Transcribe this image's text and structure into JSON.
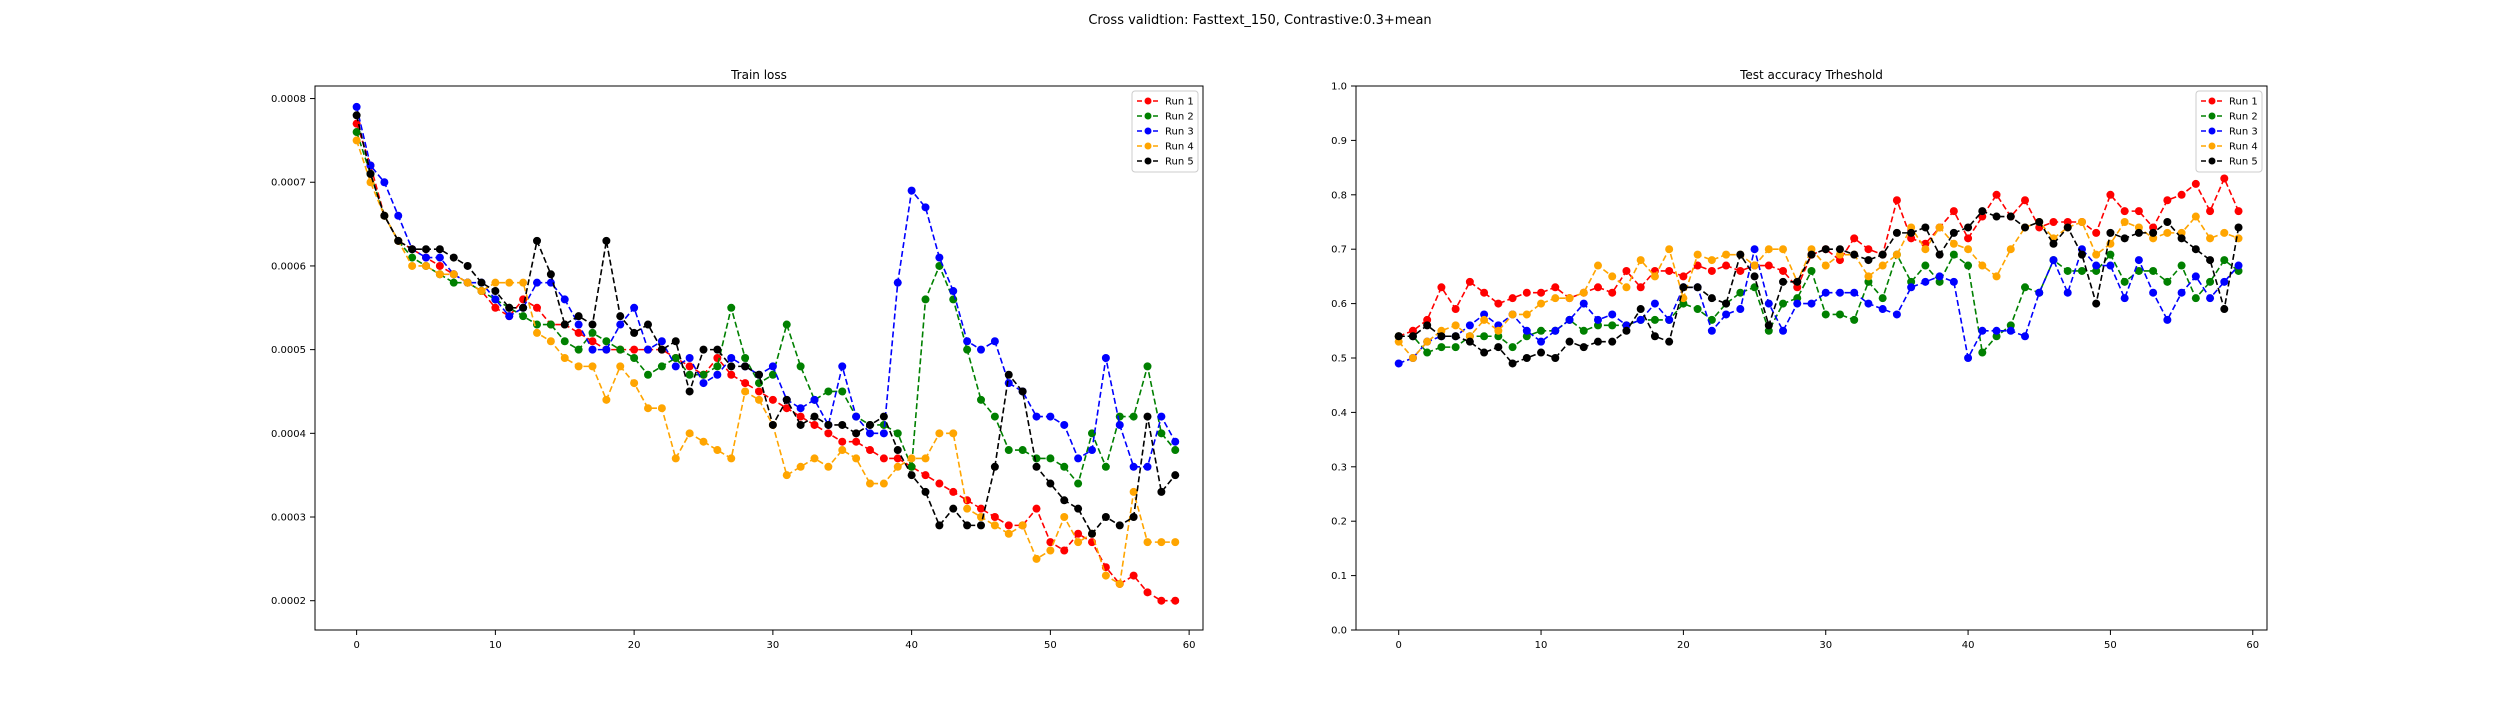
{
  "figure": {
    "suptitle": "Cross validtion: Fasttext_150, Contrastive:0.3+mean"
  },
  "chart_data": [
    {
      "type": "line",
      "title": "Train loss",
      "xlabel": "",
      "ylabel": "",
      "xlim": [
        -3,
        61
      ],
      "ylim": [
        0.000165,
        0.000815
      ],
      "xticks": [
        0,
        10,
        20,
        30,
        40,
        50,
        60
      ],
      "yticks": [
        0.0002,
        0.0003,
        0.0004,
        0.0005,
        0.0006,
        0.0007,
        0.0008
      ],
      "yticklabels": [
        "0.0002",
        "0.0003",
        "0.0004",
        "0.0005",
        "0.0006",
        "0.0007",
        "0.0008"
      ],
      "grid": false,
      "legend": "top-right",
      "series": [
        {
          "name": "Run 1",
          "color": "#ff0000",
          "values": [
            0.00077,
            0.00072,
            0.00066,
            0.00063,
            0.00062,
            0.00061,
            0.0006,
            0.00059,
            0.00058,
            0.00057,
            0.00055,
            0.00054,
            0.00056,
            0.00055,
            0.00053,
            0.00053,
            0.00052,
            0.00051,
            0.0005,
            0.0005,
            0.0005,
            0.0005,
            0.0005,
            0.00049,
            0.00048,
            0.00047,
            0.00049,
            0.00047,
            0.00046,
            0.00045,
            0.00044,
            0.00043,
            0.00042,
            0.00041,
            0.0004,
            0.00039,
            0.00039,
            0.00038,
            0.00037,
            0.00037,
            0.00036,
            0.00035,
            0.00034,
            0.00033,
            0.00032,
            0.00031,
            0.0003,
            0.00029,
            0.00029,
            0.00031,
            0.00027,
            0.00026,
            0.00028,
            0.00027,
            0.00024,
            0.00022,
            0.00023,
            0.00021,
            0.0002,
            0.0002
          ]
        },
        {
          "name": "Run 2",
          "color": "#008000",
          "values": [
            0.00076,
            0.00071,
            0.00066,
            0.00063,
            0.00061,
            0.0006,
            0.00059,
            0.00058,
            0.00058,
            0.00057,
            0.00056,
            0.00055,
            0.00054,
            0.00053,
            0.00053,
            0.00051,
            0.0005,
            0.00052,
            0.00051,
            0.0005,
            0.00049,
            0.00047,
            0.00048,
            0.00049,
            0.00047,
            0.00047,
            0.00048,
            0.00055,
            0.00049,
            0.00046,
            0.00047,
            0.00053,
            0.00048,
            0.00044,
            0.00045,
            0.00045,
            0.00042,
            0.00041,
            0.00041,
            0.0004,
            0.00036,
            0.00056,
            0.0006,
            0.00056,
            0.0005,
            0.00044,
            0.00042,
            0.00038,
            0.00038,
            0.00037,
            0.00037,
            0.00036,
            0.00034,
            0.0004,
            0.00036,
            0.00042,
            0.00042,
            0.00048,
            0.0004,
            0.00038
          ]
        },
        {
          "name": "Run 3",
          "color": "#0000ff",
          "values": [
            0.00079,
            0.00072,
            0.0007,
            0.00066,
            0.00062,
            0.00061,
            0.00061,
            0.00059,
            0.00058,
            0.00058,
            0.00056,
            0.00054,
            0.00055,
            0.00058,
            0.00058,
            0.00056,
            0.00053,
            0.0005,
            0.0005,
            0.00053,
            0.00055,
            0.0005,
            0.00051,
            0.00048,
            0.00049,
            0.00046,
            0.00047,
            0.00049,
            0.00048,
            0.00047,
            0.00048,
            0.00044,
            0.00043,
            0.00044,
            0.00041,
            0.00048,
            0.00042,
            0.0004,
            0.0004,
            0.00058,
            0.00069,
            0.00067,
            0.00061,
            0.00057,
            0.00051,
            0.0005,
            0.00051,
            0.00046,
            0.00045,
            0.00042,
            0.00042,
            0.00041,
            0.00037,
            0.00038,
            0.00049,
            0.00041,
            0.00036,
            0.00036,
            0.00042,
            0.00039
          ]
        },
        {
          "name": "Run 4",
          "color": "#ffa500",
          "values": [
            0.00075,
            0.0007,
            0.00066,
            0.00063,
            0.0006,
            0.0006,
            0.00059,
            0.00059,
            0.00058,
            0.00057,
            0.00058,
            0.00058,
            0.00058,
            0.00052,
            0.00051,
            0.00049,
            0.00048,
            0.00048,
            0.00044,
            0.00048,
            0.00046,
            0.00043,
            0.00043,
            0.00037,
            0.0004,
            0.00039,
            0.00038,
            0.00037,
            0.00045,
            0.00044,
            0.00041,
            0.00035,
            0.00036,
            0.00037,
            0.00036,
            0.00038,
            0.00037,
            0.00034,
            0.00034,
            0.00036,
            0.00037,
            0.00037,
            0.0004,
            0.0004,
            0.00031,
            0.0003,
            0.00029,
            0.00028,
            0.00029,
            0.00025,
            0.00026,
            0.0003,
            0.00027,
            0.00028,
            0.00023,
            0.00022,
            0.00033,
            0.00027,
            0.00027,
            0.00027
          ]
        },
        {
          "name": "Run 5",
          "color": "#000000",
          "values": [
            0.00078,
            0.00071,
            0.00066,
            0.00063,
            0.00062,
            0.00062,
            0.00062,
            0.00061,
            0.0006,
            0.00058,
            0.00057,
            0.00055,
            0.00055,
            0.00063,
            0.00059,
            0.00053,
            0.00054,
            0.00053,
            0.00063,
            0.00054,
            0.00052,
            0.00053,
            0.0005,
            0.00051,
            0.00045,
            0.0005,
            0.0005,
            0.00048,
            0.00048,
            0.00047,
            0.00041,
            0.00044,
            0.00041,
            0.00042,
            0.00041,
            0.00041,
            0.0004,
            0.00041,
            0.00042,
            0.00038,
            0.00035,
            0.00033,
            0.00029,
            0.00031,
            0.00029,
            0.00029,
            0.00036,
            0.00047,
            0.00045,
            0.00036,
            0.00034,
            0.00032,
            0.00031,
            0.00028,
            0.0003,
            0.00029,
            0.0003,
            0.00042,
            0.00033,
            0.00035
          ]
        }
      ]
    },
    {
      "type": "line",
      "title": "Test accuracy Trheshold",
      "xlabel": "",
      "ylabel": "",
      "xlim": [
        -3,
        61
      ],
      "ylim": [
        0.0,
        1.0
      ],
      "xticks": [
        0,
        10,
        20,
        30,
        40,
        50,
        60
      ],
      "yticks": [
        0.0,
        0.1,
        0.2,
        0.3,
        0.4,
        0.5,
        0.6,
        0.7,
        0.8,
        0.9,
        1.0
      ],
      "yticklabels": [
        "0.0",
        "0.1",
        "0.2",
        "0.3",
        "0.4",
        "0.5",
        "0.6",
        "0.7",
        "0.8",
        "0.9",
        "1.0"
      ],
      "grid": false,
      "legend": "top-right",
      "series": [
        {
          "name": "Run 1",
          "color": "#ff0000",
          "values": [
            0.54,
            0.55,
            0.57,
            0.63,
            0.59,
            0.64,
            0.62,
            0.6,
            0.61,
            0.62,
            0.62,
            0.63,
            0.61,
            0.62,
            0.63,
            0.62,
            0.66,
            0.63,
            0.66,
            0.66,
            0.65,
            0.67,
            0.66,
            0.67,
            0.66,
            0.67,
            0.67,
            0.66,
            0.63,
            0.69,
            0.7,
            0.68,
            0.72,
            0.7,
            0.69,
            0.79,
            0.72,
            0.71,
            0.74,
            0.77,
            0.72,
            0.76,
            0.8,
            0.76,
            0.79,
            0.74,
            0.75,
            0.75,
            0.75,
            0.73,
            0.8,
            0.77,
            0.77,
            0.74,
            0.79,
            0.8,
            0.82,
            0.77,
            0.83,
            0.77
          ]
        },
        {
          "name": "Run 2",
          "color": "#008000",
          "values": [
            0.54,
            0.54,
            0.51,
            0.52,
            0.52,
            0.54,
            0.54,
            0.54,
            0.52,
            0.54,
            0.55,
            0.55,
            0.57,
            0.55,
            0.56,
            0.56,
            0.56,
            0.57,
            0.57,
            0.57,
            0.6,
            0.59,
            0.57,
            0.6,
            0.62,
            0.63,
            0.55,
            0.6,
            0.61,
            0.66,
            0.58,
            0.58,
            0.57,
            0.64,
            0.61,
            0.69,
            0.64,
            0.67,
            0.64,
            0.69,
            0.67,
            0.51,
            0.54,
            0.56,
            0.63,
            0.62,
            0.68,
            0.66,
            0.66,
            0.66,
            0.69,
            0.64,
            0.66,
            0.66,
            0.64,
            0.67,
            0.61,
            0.64,
            0.68,
            0.66
          ]
        },
        {
          "name": "Run 3",
          "color": "#0000ff",
          "values": [
            0.49,
            0.5,
            0.53,
            0.54,
            0.54,
            0.56,
            0.58,
            0.56,
            0.58,
            0.55,
            0.53,
            0.55,
            0.57,
            0.6,
            0.57,
            0.58,
            0.56,
            0.57,
            0.6,
            0.57,
            0.63,
            0.63,
            0.55,
            0.58,
            0.59,
            0.7,
            0.6,
            0.55,
            0.6,
            0.6,
            0.62,
            0.62,
            0.62,
            0.6,
            0.59,
            0.58,
            0.63,
            0.64,
            0.65,
            0.64,
            0.5,
            0.55,
            0.55,
            0.55,
            0.54,
            0.62,
            0.68,
            0.62,
            0.7,
            0.67,
            0.67,
            0.61,
            0.68,
            0.62,
            0.57,
            0.62,
            0.65,
            0.61,
            0.64,
            0.67
          ]
        },
        {
          "name": "Run 4",
          "color": "#ffa500",
          "values": [
            0.53,
            0.5,
            0.53,
            0.55,
            0.56,
            0.54,
            0.57,
            0.55,
            0.58,
            0.58,
            0.6,
            0.61,
            0.61,
            0.62,
            0.67,
            0.65,
            0.63,
            0.68,
            0.65,
            0.7,
            0.61,
            0.69,
            0.68,
            0.69,
            0.69,
            0.67,
            0.7,
            0.7,
            0.64,
            0.7,
            0.67,
            0.69,
            0.69,
            0.65,
            0.67,
            0.69,
            0.74,
            0.7,
            0.74,
            0.71,
            0.7,
            0.67,
            0.65,
            0.7,
            0.74,
            0.75,
            0.72,
            0.74,
            0.75,
            0.69,
            0.71,
            0.75,
            0.74,
            0.72,
            0.73,
            0.73,
            0.76,
            0.72,
            0.73,
            0.72
          ]
        },
        {
          "name": "Run 5",
          "color": "#000000",
          "values": [
            0.54,
            0.54,
            0.56,
            0.54,
            0.54,
            0.53,
            0.51,
            0.52,
            0.49,
            0.5,
            0.51,
            0.5,
            0.53,
            0.52,
            0.53,
            0.53,
            0.55,
            0.59,
            0.54,
            0.53,
            0.63,
            0.63,
            0.61,
            0.6,
            0.69,
            0.65,
            0.56,
            0.64,
            0.64,
            0.69,
            0.7,
            0.7,
            0.69,
            0.68,
            0.69,
            0.73,
            0.73,
            0.74,
            0.69,
            0.73,
            0.74,
            0.77,
            0.76,
            0.76,
            0.74,
            0.75,
            0.71,
            0.74,
            0.69,
            0.6,
            0.73,
            0.72,
            0.73,
            0.73,
            0.75,
            0.72,
            0.7,
            0.68,
            0.59,
            0.74
          ]
        }
      ]
    }
  ]
}
